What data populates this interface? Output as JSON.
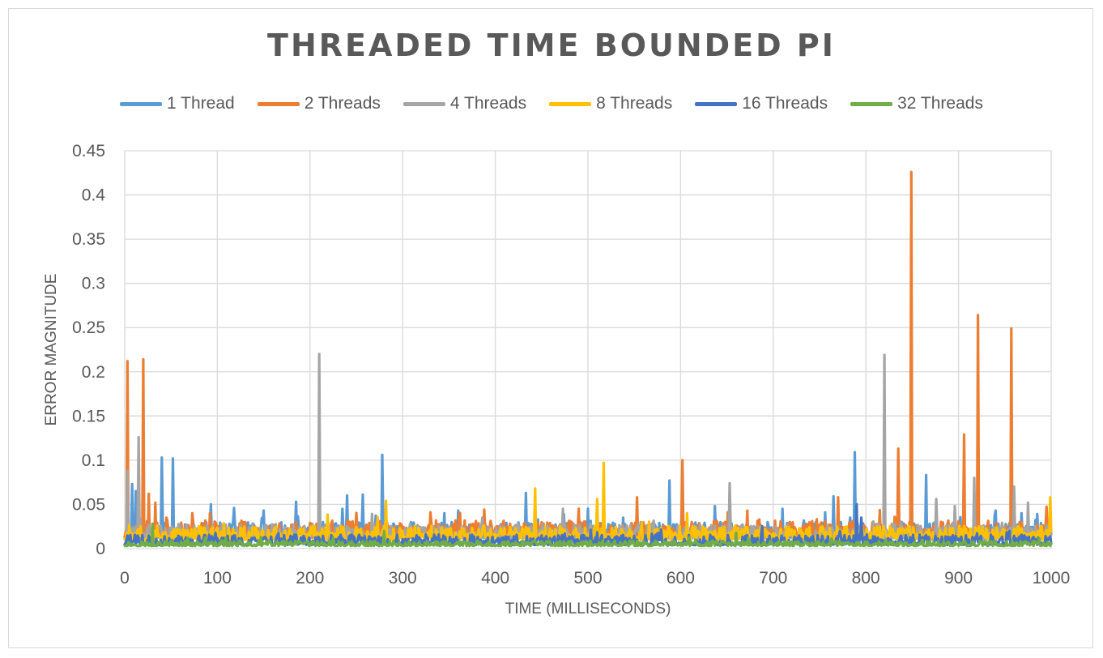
{
  "chart_data": {
    "type": "line",
    "title": "THREADED TIME BOUNDED PI",
    "xlabel": "TIME (MILLISECONDS)",
    "ylabel": "ERROR MAGNITUDE",
    "xlim": [
      0,
      1000
    ],
    "ylim": [
      0,
      0.45
    ],
    "x_ticks": [
      "0",
      "100",
      "200",
      "300",
      "400",
      "500",
      "600",
      "700",
      "800",
      "900",
      "1000"
    ],
    "y_ticks": [
      "0",
      "0.05",
      "0.1",
      "0.15",
      "0.2",
      "0.25",
      "0.3",
      "0.35",
      "0.4",
      "0.45"
    ],
    "grid": true,
    "legend_position": "top",
    "series": [
      {
        "name": "1 Thread",
        "color": "#5b9bd5",
        "baseline": 0.012,
        "noise": 0.018,
        "seed": 11,
        "spikes": [
          [
            8,
            0.073
          ],
          [
            12,
            0.065
          ],
          [
            40,
            0.103
          ],
          [
            52,
            0.102
          ],
          [
            93,
            0.05
          ],
          [
            118,
            0.046
          ],
          [
            150,
            0.043
          ],
          [
            185,
            0.053
          ],
          [
            235,
            0.045
          ],
          [
            240,
            0.06
          ],
          [
            257,
            0.061
          ],
          [
            278,
            0.106
          ],
          [
            345,
            0.04
          ],
          [
            360,
            0.043
          ],
          [
            433,
            0.063
          ],
          [
            500,
            0.045
          ],
          [
            538,
            0.035
          ],
          [
            588,
            0.077
          ],
          [
            637,
            0.048
          ],
          [
            710,
            0.045
          ],
          [
            765,
            0.059
          ],
          [
            788,
            0.109
          ],
          [
            865,
            0.083
          ],
          [
            940,
            0.043
          ],
          [
            968,
            0.04
          ],
          [
            985,
            0.039
          ]
        ]
      },
      {
        "name": "2 Threads",
        "color": "#ed7d31",
        "baseline": 0.012,
        "noise": 0.02,
        "seed": 23,
        "spikes": [
          [
            3,
            0.212
          ],
          [
            20,
            0.214
          ],
          [
            26,
            0.062
          ],
          [
            33,
            0.052
          ],
          [
            45,
            0.035
          ],
          [
            73,
            0.04
          ],
          [
            92,
            0.04
          ],
          [
            130,
            0.03
          ],
          [
            330,
            0.041
          ],
          [
            490,
            0.045
          ],
          [
            553,
            0.058
          ],
          [
            602,
            0.1
          ],
          [
            718,
            0.03
          ],
          [
            770,
            0.058
          ],
          [
            835,
            0.113
          ],
          [
            849,
            0.426
          ],
          [
            906,
            0.129
          ],
          [
            921,
            0.264
          ],
          [
            957,
            0.249
          ]
        ]
      },
      {
        "name": "4 Threads",
        "color": "#a5a5a5",
        "baseline": 0.01,
        "noise": 0.018,
        "seed": 37,
        "spikes": [
          [
            3,
            0.088
          ],
          [
            15,
            0.126
          ],
          [
            210,
            0.22
          ],
          [
            473,
            0.045
          ],
          [
            653,
            0.074
          ],
          [
            820,
            0.219
          ],
          [
            876,
            0.056
          ],
          [
            896,
            0.048
          ],
          [
            917,
            0.08
          ],
          [
            960,
            0.07
          ],
          [
            975,
            0.052
          ]
        ]
      },
      {
        "name": "8 Threads",
        "color": "#ffc000",
        "baseline": 0.01,
        "noise": 0.016,
        "seed": 53,
        "spikes": [
          [
            282,
            0.054
          ],
          [
            443,
            0.068
          ],
          [
            510,
            0.056
          ],
          [
            517,
            0.097
          ],
          [
            607,
            0.04
          ],
          [
            999,
            0.058
          ]
        ]
      },
      {
        "name": "16 Threads",
        "color": "#4472c4",
        "baseline": 0.004,
        "noise": 0.012,
        "seed": 71,
        "spikes": [
          [
            790,
            0.05
          ],
          [
            795,
            0.035
          ],
          [
            955,
            0.02
          ]
        ]
      },
      {
        "name": "32 Threads",
        "color": "#70ad47",
        "baseline": 0.003,
        "noise": 0.006,
        "seed": 97,
        "spikes": [
          [
            30,
            0.028
          ],
          [
            280,
            0.02
          ],
          [
            660,
            0.018
          ]
        ]
      }
    ]
  }
}
